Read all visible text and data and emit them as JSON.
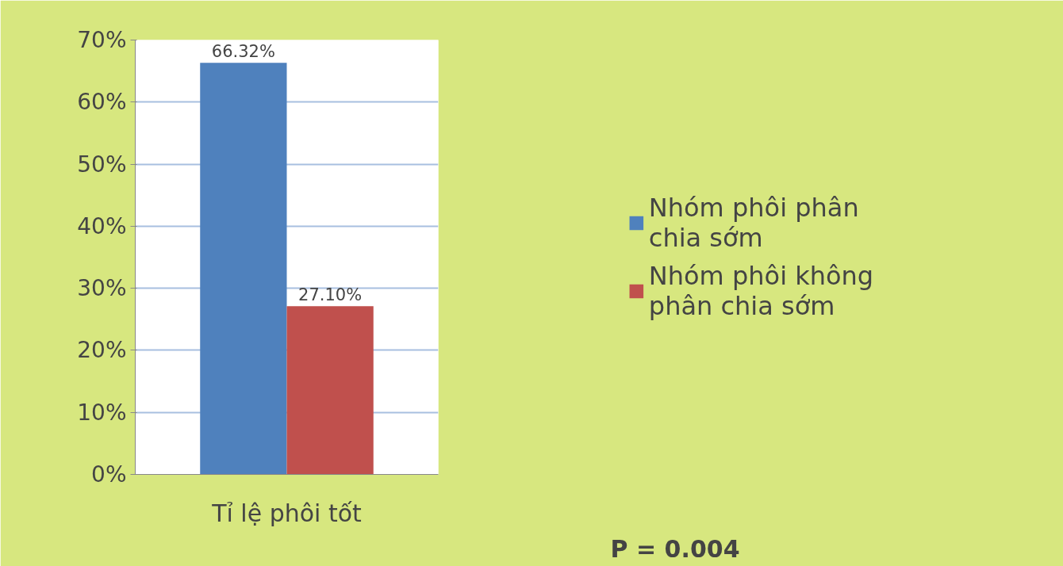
{
  "chart_data": {
    "type": "bar",
    "categories": [
      "Tỉ lệ phôi tốt"
    ],
    "series": [
      {
        "name": "Nhóm phôi phân chia sớm",
        "color": "#4f81bd",
        "values": [
          66.32
        ],
        "value_labels": [
          "66.32%"
        ]
      },
      {
        "name": "Nhóm phôi không phân chia sớm",
        "color": "#c0504d",
        "values": [
          27.1
        ],
        "value_labels": [
          "27.10%"
        ]
      }
    ],
    "ylim": [
      0,
      70
    ],
    "yticks": [
      {
        "value": 0,
        "label": "0%"
      },
      {
        "value": 10,
        "label": "10%"
      },
      {
        "value": 20,
        "label": "20%"
      },
      {
        "value": 30,
        "label": "30%"
      },
      {
        "value": 40,
        "label": "40%"
      },
      {
        "value": 50,
        "label": "50%"
      },
      {
        "value": 60,
        "label": "60%"
      },
      {
        "value": 70,
        "label": "70%"
      }
    ],
    "grid": "y",
    "legend": "right",
    "annotations": [
      "P = 0.004"
    ]
  }
}
